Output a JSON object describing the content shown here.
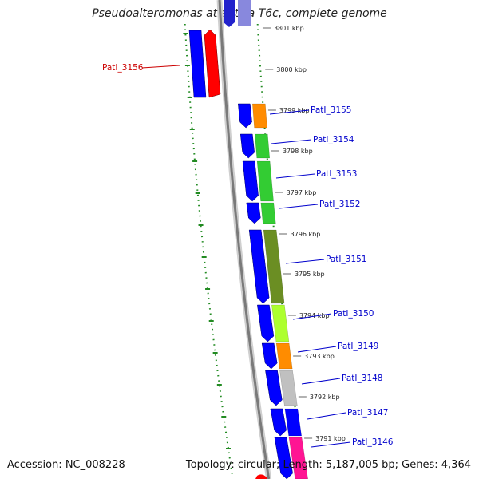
{
  "title": "Pseudoalteromonas atlantica T6c, complete genome",
  "footer": {
    "accession": "Accession: NC_008228",
    "summary": "Topology: circular; Length: 5,187,005 bp; Genes: 4,364"
  },
  "colors": {
    "label_blue": "#0000cc",
    "label_red": "#cc0000",
    "strand_blue": "#0000ff",
    "tick_green": "#228b22"
  },
  "kbp_ticks": [
    {
      "label": "3801 kbp"
    },
    {
      "label": "3800 kbp"
    },
    {
      "label": "3799 kbp"
    },
    {
      "label": "3798 kbp"
    },
    {
      "label": "3797 kbp"
    },
    {
      "label": "3796 kbp"
    },
    {
      "label": "3795 kbp"
    },
    {
      "label": "3794 kbp"
    },
    {
      "label": "3793 kbp"
    },
    {
      "label": "3792 kbp"
    },
    {
      "label": "3791 kbp"
    }
  ],
  "genes": [
    {
      "label": "PatI_3156",
      "strand": "reverse",
      "color": "#ff0000"
    },
    {
      "label": "PatI_3155",
      "strand": "forward",
      "color": "#ff8c00"
    },
    {
      "label": "PatI_3154",
      "strand": "forward",
      "color": "#33cc33"
    },
    {
      "label": "PatI_3153",
      "strand": "forward",
      "color": "#33cc33"
    },
    {
      "label": "PatI_3152",
      "strand": "forward",
      "color": "#33cc33"
    },
    {
      "label": "PatI_3151",
      "strand": "forward",
      "color": "#6b8e23"
    },
    {
      "label": "PatI_3150",
      "strand": "forward",
      "color": "#adff2f"
    },
    {
      "label": "PatI_3149",
      "strand": "forward",
      "color": "#ff8c00"
    },
    {
      "label": "PatI_3148",
      "strand": "forward",
      "color": "#c0c0c0"
    },
    {
      "label": "PatI_3147",
      "strand": "forward",
      "color": "#0000ff"
    },
    {
      "label": "PatI_3146",
      "strand": "forward",
      "color": "#ff1493"
    }
  ]
}
